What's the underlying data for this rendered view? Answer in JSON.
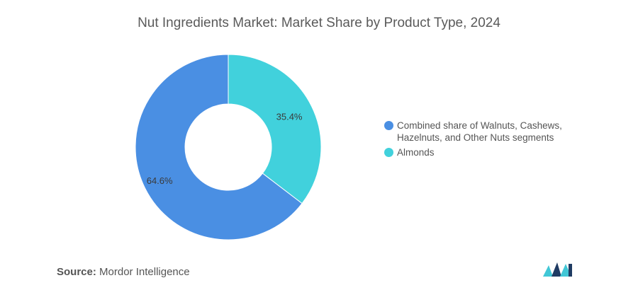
{
  "title": "Nut Ingredients Market: Market Share by Product Type, 2024",
  "chart_data": {
    "type": "pie",
    "style": "donut",
    "title": "Nut Ingredients Market: Market Share by Product Type, 2024",
    "series": [
      {
        "name": "Combined share of Walnuts, Cashews, Hazelnuts, and Other Nuts segments",
        "value": 64.6,
        "label": "64.6%",
        "color": "#4a8fe3"
      },
      {
        "name": "Almonds",
        "value": 35.4,
        "label": "35.4%",
        "color": "#41d1dc"
      }
    ],
    "legend_position": "right"
  },
  "legend": {
    "items": [
      {
        "label": "Combined share of Walnuts, Cashews, Hazelnuts, and Other Nuts segments",
        "color": "#4a8fe3"
      },
      {
        "label": "Almonds",
        "color": "#41d1dc"
      }
    ]
  },
  "source": {
    "label": "Source:",
    "value": "Mordor Intelligence"
  },
  "logo": {
    "name": "mordor-intelligence-logo",
    "color_dark": "#1f3b63",
    "color_light": "#41c7d6"
  }
}
